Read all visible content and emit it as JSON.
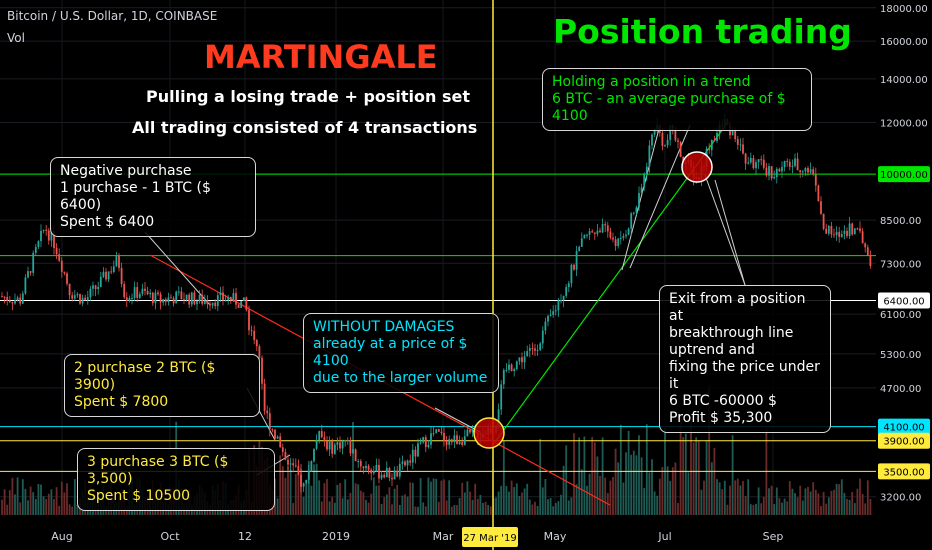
{
  "header": {
    "symbol": "Bitcoin / U.S. Dollar, 1D, COINBASE",
    "vol": "Vol"
  },
  "titles": {
    "martingale": "MARTINGALE",
    "position_trading": "Position trading",
    "line1": "Pulling a losing trade + position set",
    "line2": "All trading consisted of 4 transactions"
  },
  "annotations": {
    "negative": "Negative purchase\n1 purchase - 1 BTC ($ 6400)\nSpent $ 6400",
    "p2": "2 purchase 2 BTC ($ 3900)\nSpent $ 7800",
    "p3": "3 purchase 3 BTC ($ 3,500)\nSpent $ 10500",
    "without": "WITHOUT DAMAGES\nalready at a price of $ 4100\ndue to the larger volume",
    "holding": "Holding a position in a trend\n6 BTC - an average purchase of $ 4100",
    "exit": "Exit from a position at\nbreakthrough line\nuptrend and\nfixing the price under it\n6 BTC -60000 $\nProfit $ 35,300"
  },
  "colors": {
    "green": "#00e600",
    "red": "#ff3b1f",
    "yellow": "#ffeb3b",
    "cyan": "#00e5ff",
    "candle_up": "#26a69a",
    "candle_down": "#ef5350"
  },
  "chart_data": {
    "type": "candlestick",
    "y_scale": "log",
    "ylim": [
      3000,
      18500
    ],
    "y_ticks": [
      "18000.00",
      "16000.00",
      "14000.00",
      "12000.00",
      "10000.00",
      "8500.00",
      "7300.00",
      "6100.00",
      "5300.00",
      "4700.00",
      "3200.00"
    ],
    "x_ticks": [
      "Aug",
      "Oct",
      "12",
      "2019",
      "Mar",
      "May",
      "Jul",
      "Sep"
    ],
    "marked_date": "27 Mar '19",
    "price_levels": [
      {
        "value": 10000,
        "label": "10000.00",
        "color": "#00e600"
      },
      {
        "value": 7500,
        "label": "",
        "color": "#00e600"
      },
      {
        "value": 6400,
        "label": "6400.00",
        "color": "#ffffff"
      },
      {
        "value": 4100,
        "label": "4100.00",
        "color": "#00e5ff"
      },
      {
        "value": 3900,
        "label": "3900.00",
        "color": "#ffeb3b"
      },
      {
        "value": 3500,
        "label": "3500.00",
        "color": "#ffeb3b"
      }
    ],
    "price_path": [
      [
        0,
        6500
      ],
      [
        20,
        6400
      ],
      [
        45,
        8300
      ],
      [
        55,
        7800
      ],
      [
        70,
        6600
      ],
      [
        85,
        6400
      ],
      [
        100,
        6800
      ],
      [
        118,
        7400
      ],
      [
        125,
        6500
      ],
      [
        140,
        6600
      ],
      [
        160,
        6400
      ],
      [
        180,
        6500
      ],
      [
        200,
        6400
      ],
      [
        230,
        6450
      ],
      [
        245,
        6300
      ],
      [
        252,
        5600
      ],
      [
        258,
        5500
      ],
      [
        265,
        4300
      ],
      [
        275,
        4000
      ],
      [
        285,
        3700
      ],
      [
        295,
        3500
      ],
      [
        305,
        3300
      ],
      [
        312,
        3700
      ],
      [
        320,
        4000
      ],
      [
        330,
        3800
      ],
      [
        345,
        3900
      ],
      [
        360,
        3600
      ],
      [
        375,
        3500
      ],
      [
        395,
        3450
      ],
      [
        410,
        3650
      ],
      [
        425,
        3900
      ],
      [
        435,
        4000
      ],
      [
        450,
        3900
      ],
      [
        465,
        3950
      ],
      [
        480,
        4000
      ],
      [
        495,
        4100
      ],
      [
        505,
        5000
      ],
      [
        520,
        5200
      ],
      [
        535,
        5400
      ],
      [
        555,
        6200
      ],
      [
        570,
        7000
      ],
      [
        585,
        8000
      ],
      [
        600,
        8300
      ],
      [
        620,
        7800
      ],
      [
        640,
        9200
      ],
      [
        655,
        12000
      ],
      [
        665,
        11000
      ],
      [
        672,
        11800
      ],
      [
        680,
        10800
      ],
      [
        690,
        10200
      ],
      [
        698,
        9800
      ],
      [
        710,
        11200
      ],
      [
        725,
        12000
      ],
      [
        735,
        11500
      ],
      [
        745,
        10500
      ],
      [
        760,
        10300
      ],
      [
        775,
        10000
      ],
      [
        790,
        10400
      ],
      [
        805,
        10200
      ],
      [
        815,
        10000
      ],
      [
        822,
        8300
      ],
      [
        835,
        8000
      ],
      [
        850,
        8300
      ],
      [
        860,
        8100
      ],
      [
        870,
        7400
      ]
    ]
  }
}
